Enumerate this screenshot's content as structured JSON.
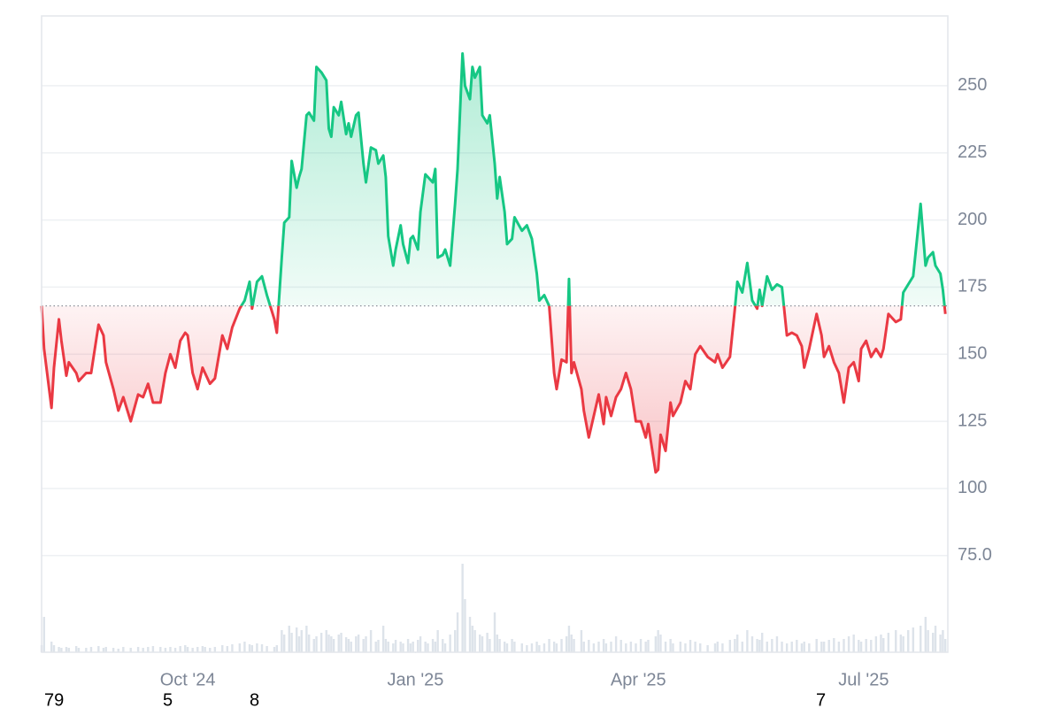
{
  "chart_data": {
    "type": "baseline-area",
    "xlim": [
      0,
      366
    ],
    "xticks": [
      {
        "value": 59,
        "label": "Oct '24"
      },
      {
        "value": 151,
        "label": "Jan '25"
      },
      {
        "value": 241,
        "label": "Apr '25"
      },
      {
        "value": 332,
        "label": "Jul '25"
      }
    ],
    "ylim": [
      39,
      276
    ],
    "yticks": [
      {
        "value": 75,
        "label": "75.0"
      },
      100,
      125,
      150,
      175,
      200,
      225,
      250
    ],
    "grid": true,
    "baseline": 168,
    "up_color": "#16c784",
    "down_color": "#ea3943",
    "volume_color": "#dde3ea",
    "x": [
      0,
      1,
      4,
      5,
      7,
      8,
      10,
      11,
      14,
      15,
      18,
      20,
      23,
      25,
      26,
      29,
      31,
      33,
      36,
      39,
      41,
      43,
      45,
      48,
      50,
      52,
      54,
      56,
      58,
      59,
      61,
      63,
      65,
      66,
      68,
      70,
      73,
      75,
      77,
      80,
      82,
      84,
      85,
      87,
      89,
      91,
      94,
      95,
      97,
      98,
      100,
      101,
      103,
      104,
      105,
      107,
      108,
      110,
      111,
      113,
      115,
      116,
      117,
      118,
      120,
      121,
      123,
      124,
      125,
      127,
      128,
      130,
      131,
      133,
      135,
      136,
      138,
      139,
      140,
      142,
      143,
      145,
      146,
      148,
      149,
      150,
      152,
      153,
      155,
      156,
      158,
      159,
      160,
      162,
      163,
      165,
      167,
      168,
      170,
      171,
      173,
      174,
      175,
      177,
      178,
      180,
      181,
      183,
      184,
      185,
      187,
      188,
      190,
      191,
      194,
      196,
      198,
      200,
      201,
      203,
      205,
      207,
      208,
      210,
      212,
      213,
      214,
      215,
      218,
      219,
      221,
      223,
      225,
      227,
      228,
      230,
      232,
      234,
      236,
      238,
      240,
      242,
      244,
      245,
      248,
      249,
      250,
      252,
      254,
      255,
      258,
      260,
      262,
      264,
      266,
      269,
      272,
      273,
      275,
      278,
      280,
      281,
      283,
      285,
      287,
      289,
      290,
      291,
      293,
      295,
      297,
      299,
      301,
      303,
      305,
      307,
      308,
      310,
      313,
      315,
      316,
      318,
      320,
      322,
      324,
      326,
      328,
      330,
      331,
      333,
      335,
      337,
      339,
      340,
      342,
      345,
      347,
      348,
      350,
      352,
      355,
      357,
      358,
      360,
      361,
      363,
      364,
      365
    ],
    "values": [
      168,
      152,
      130,
      145,
      163,
      155,
      142,
      147,
      143,
      140,
      143,
      143,
      161,
      157,
      147,
      137,
      129,
      134,
      125,
      135,
      134,
      139,
      132,
      132,
      143,
      150,
      145,
      155,
      158,
      157,
      143,
      137,
      145,
      143,
      139,
      141,
      157,
      152,
      160,
      167,
      170,
      177,
      167,
      177,
      179,
      172,
      163,
      158,
      186,
      199,
      201,
      222,
      212,
      216,
      219,
      239,
      240,
      237,
      257,
      255,
      252,
      234,
      231,
      242,
      239,
      244,
      232,
      236,
      231,
      239,
      240,
      221,
      214,
      227,
      226,
      221,
      224,
      216,
      194,
      183,
      189,
      198,
      191,
      184,
      193,
      194,
      189,
      203,
      217,
      216,
      214,
      219,
      186,
      187,
      189,
      183,
      206,
      219,
      262,
      250,
      245,
      257,
      253,
      257,
      239,
      236,
      239,
      221,
      208,
      216,
      203,
      191,
      193,
      201,
      196,
      198,
      193,
      180,
      170,
      172,
      168,
      143,
      137,
      148,
      147,
      178,
      143,
      147,
      137,
      129,
      119,
      127,
      135,
      124,
      134,
      127,
      134,
      137,
      143,
      137,
      125,
      125,
      119,
      124,
      106,
      107,
      120,
      114,
      132,
      127,
      132,
      140,
      137,
      150,
      153,
      149,
      147,
      150,
      145,
      149,
      167,
      177,
      173,
      184,
      170,
      167,
      174,
      168,
      179,
      174,
      176,
      175,
      157,
      158,
      157,
      153,
      145,
      152,
      165,
      157,
      149,
      153,
      147,
      143,
      132,
      145,
      147,
      140,
      152,
      155,
      149,
      152,
      149,
      152,
      165,
      162,
      163,
      173,
      176,
      179,
      206,
      183,
      186,
      188,
      183,
      180,
      174,
      165
    ],
    "volume": [
      8,
      40,
      12,
      8,
      6,
      5,
      6,
      5,
      7,
      5,
      5,
      6,
      7,
      5,
      6,
      5,
      4,
      6,
      5,
      6,
      5,
      6,
      7,
      6,
      5,
      6,
      5,
      7,
      8,
      6,
      5,
      6,
      7,
      6,
      5,
      6,
      8,
      7,
      9,
      10,
      12,
      9,
      8,
      10,
      9,
      7,
      6,
      8,
      25,
      20,
      30,
      22,
      28,
      18,
      25,
      30,
      20,
      15,
      18,
      22,
      25,
      20,
      18,
      15,
      20,
      22,
      17,
      15,
      12,
      18,
      20,
      15,
      18,
      25,
      12,
      14,
      30,
      15,
      12,
      10,
      14,
      12,
      10,
      15,
      10,
      12,
      14,
      18,
      12,
      10,
      15,
      12,
      25,
      15,
      10,
      20,
      25,
      45,
      100,
      60,
      40,
      30,
      25,
      20,
      18,
      22,
      15,
      45,
      20,
      15,
      12,
      10,
      15,
      12,
      10,
      8,
      10,
      12,
      8,
      10,
      15,
      12,
      10,
      15,
      18,
      30,
      20,
      15,
      25,
      12,
      14,
      10,
      12,
      15,
      10,
      12,
      18,
      14,
      10,
      12,
      10,
      15,
      12,
      14,
      18,
      25,
      20,
      12,
      15,
      10,
      12,
      10,
      14,
      12,
      10,
      8,
      10,
      12,
      10,
      14,
      15,
      20,
      12,
      25,
      18,
      15,
      14,
      22,
      12,
      15,
      18,
      12,
      10,
      12,
      14,
      10,
      12,
      10,
      15,
      12,
      12,
      14,
      16,
      12,
      15,
      18,
      20,
      14,
      12,
      15,
      14,
      18,
      20,
      16,
      22,
      25,
      20,
      18,
      25,
      28,
      30,
      40,
      25,
      22,
      30,
      20,
      25,
      15
    ]
  },
  "footer_labels": [
    "79",
    "5",
    "8",
    "7"
  ]
}
